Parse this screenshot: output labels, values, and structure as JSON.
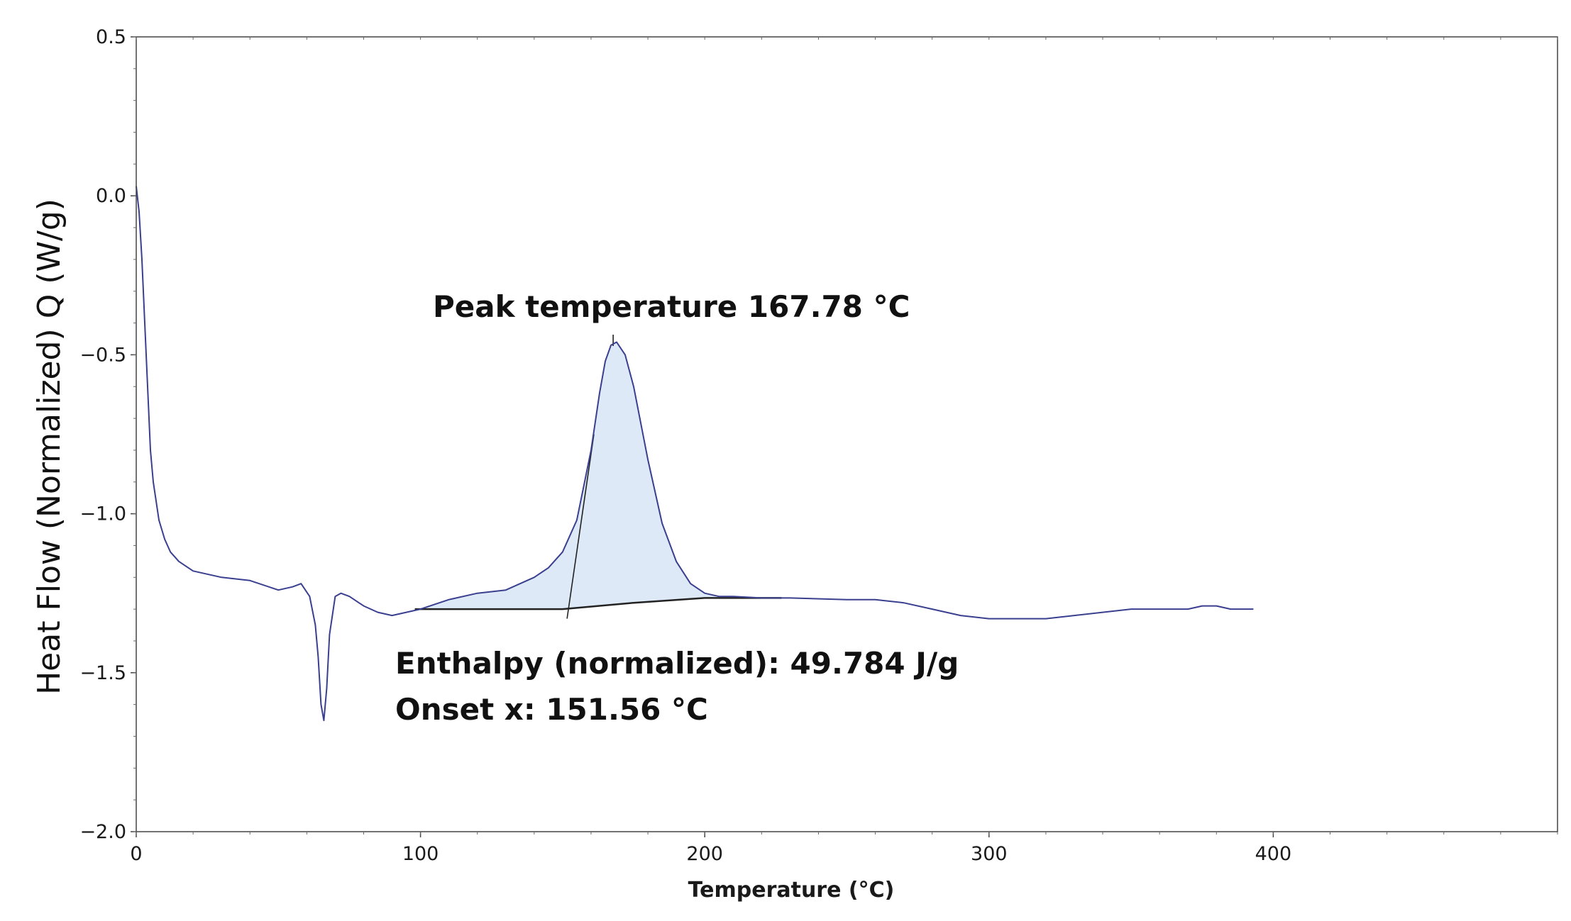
{
  "chart_data": {
    "type": "line",
    "title": "",
    "xlabel": "Temperature (°C)",
    "ylabel": "Heat Flow (Normalized) Q (W/g)",
    "xlim": [
      0,
      500
    ],
    "ylim": [
      -2.0,
      0.5
    ],
    "x_ticks": [
      0,
      100,
      200,
      300,
      400
    ],
    "x_tick_labels": [
      "0",
      "100",
      "200",
      "300",
      "400"
    ],
    "y_ticks": [
      0.5,
      0.0,
      -0.5,
      -1.0,
      -1.5,
      -2.0
    ],
    "y_tick_labels": [
      "0.5",
      "0.0",
      "−0.5",
      "−1.0",
      "−1.5",
      "−2.0"
    ],
    "grid": false,
    "series": [
      {
        "color": "#3a3f8f",
        "x": [
          0,
          1,
          2,
          3,
          4,
          5,
          6,
          8,
          10,
          12,
          15,
          20,
          30,
          40,
          50,
          55,
          58,
          61,
          63,
          64,
          65,
          66,
          67,
          68,
          70,
          72,
          75,
          80,
          85,
          90,
          95,
          100,
          110,
          120,
          130,
          140,
          145,
          150,
          155,
          160,
          163,
          165,
          167,
          169,
          172,
          175,
          180,
          185,
          190,
          195,
          200,
          205,
          210,
          220,
          230,
          250,
          260,
          270,
          280,
          290,
          300,
          310,
          320,
          330,
          340,
          350,
          360,
          370,
          375,
          380,
          385,
          390,
          393
        ],
        "y": [
          0.03,
          -0.05,
          -0.2,
          -0.4,
          -0.6,
          -0.8,
          -0.9,
          -1.02,
          -1.08,
          -1.12,
          -1.15,
          -1.18,
          -1.2,
          -1.21,
          -1.24,
          -1.23,
          -1.22,
          -1.26,
          -1.35,
          -1.45,
          -1.6,
          -1.65,
          -1.55,
          -1.38,
          -1.26,
          -1.25,
          -1.26,
          -1.29,
          -1.31,
          -1.32,
          -1.31,
          -1.3,
          -1.27,
          -1.25,
          -1.24,
          -1.2,
          -1.17,
          -1.12,
          -1.02,
          -0.8,
          -0.62,
          -0.52,
          -0.47,
          -0.46,
          -0.5,
          -0.6,
          -0.83,
          -1.03,
          -1.15,
          -1.22,
          -1.25,
          -1.26,
          -1.26,
          -1.265,
          -1.265,
          -1.27,
          -1.27,
          -1.28,
          -1.3,
          -1.32,
          -1.33,
          -1.33,
          -1.33,
          -1.32,
          -1.31,
          -1.3,
          -1.3,
          -1.3,
          -1.29,
          -1.29,
          -1.3,
          -1.3,
          -1.3
        ]
      }
    ],
    "integration_baseline": {
      "x": [
        98,
        120,
        150,
        175,
        200,
        227
      ],
      "y": [
        -1.3,
        -1.3,
        -1.3,
        -1.28,
        -1.265,
        -1.265
      ]
    },
    "annotations": [
      {
        "text": "Peak temperature 167.78 °C",
        "x": 167.78
      },
      {
        "text": "Enthalpy (normalized): 49.784 J/g"
      },
      {
        "text": "Onset x: 151.56 °C",
        "x": 151.56
      }
    ]
  }
}
